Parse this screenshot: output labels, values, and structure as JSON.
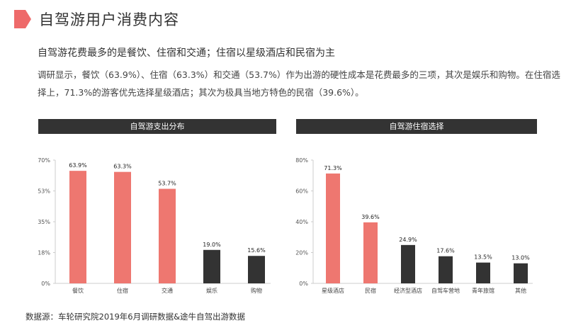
{
  "header": {
    "title": "自驾游用户消费内容",
    "accent_color": "#ee6a6a"
  },
  "summary": {
    "headline": "自驾游花费最多的是餐饮、住宿和交通；住宿以星级酒店和民宿为主",
    "body": "调研显示，餐饮（63.9%）、住宿（63.3%）和交通（53.7%）作为出游的硬性成本是花费最多的三项，其次是娱乐和购物。在住宿选择上，71.3%的游客优先选择星级酒店；其次为极具当地方特色的民宿（39.6%）。"
  },
  "chart_data": [
    {
      "type": "bar",
      "title": "自驾游支出分布",
      "categories": [
        "餐饮",
        "住宿",
        "交通",
        "娱乐",
        "购物"
      ],
      "values": [
        63.9,
        63.3,
        53.7,
        19.0,
        15.6
      ],
      "value_labels": [
        "63.9%",
        "63.3%",
        "53.7%",
        "19.0%",
        "15.6%"
      ],
      "colors": [
        "#ee7770",
        "#ee7770",
        "#ee7770",
        "#333333",
        "#333333"
      ],
      "yticks": [
        "0%",
        "18%",
        "35%",
        "53%",
        "70%"
      ],
      "ylim": [
        0,
        70
      ],
      "grid": false
    },
    {
      "type": "bar",
      "title": "自驾游住宿选择",
      "categories": [
        "星级酒店",
        "民宿",
        "经济型酒店",
        "自驾车营地",
        "青年旅馆",
        "其他"
      ],
      "values": [
        71.3,
        39.6,
        24.9,
        17.6,
        13.5,
        13.0
      ],
      "value_labels": [
        "71.3%",
        "39.6%",
        "24.9%",
        "17.6%",
        "13.5%",
        "13.0%"
      ],
      "colors": [
        "#ee7770",
        "#ee7770",
        "#333333",
        "#333333",
        "#333333",
        "#333333"
      ],
      "yticks": [
        "0%",
        "20%",
        "40%",
        "60%",
        "80%"
      ],
      "ylim": [
        0,
        80
      ],
      "grid": false
    }
  ],
  "footer": {
    "source": "数据源：车轮研究院2019年6月调研数据&途牛自驾出游数据"
  }
}
